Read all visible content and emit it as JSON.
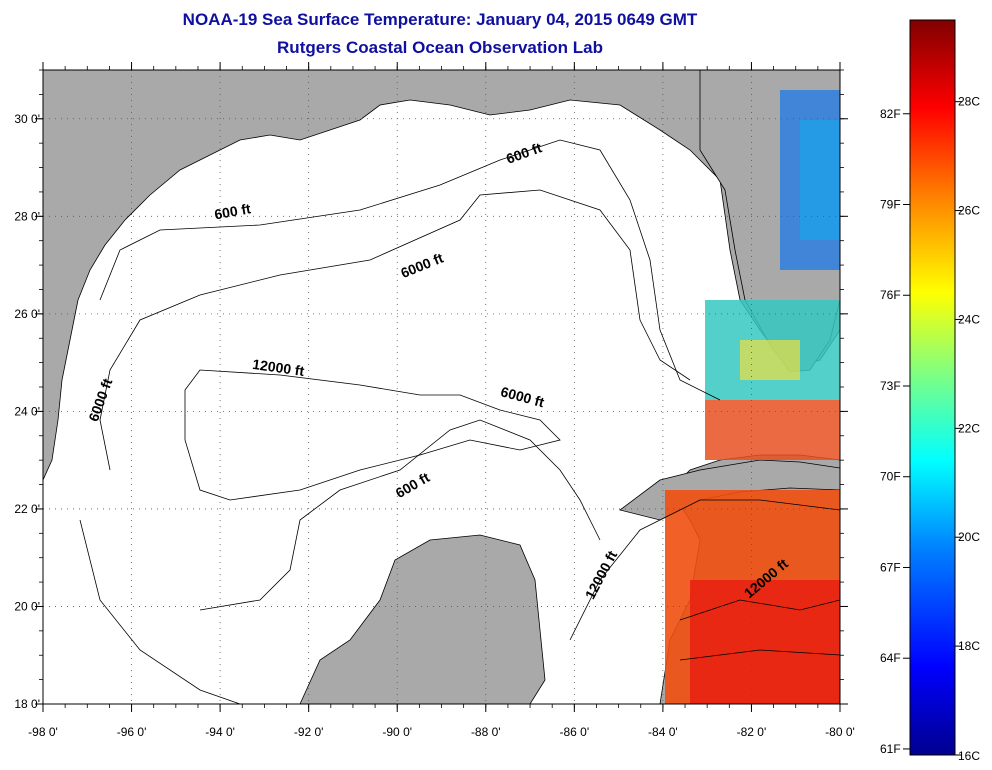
{
  "title_line1": "NOAA-19 Sea Surface Temperature:  January 04, 2015 0649 GMT",
  "title_line2": "Rutgers Coastal Ocean Observation Lab",
  "map": {
    "lon_range": [
      -98,
      -80
    ],
    "lat_range": [
      18,
      31
    ],
    "lon_ticks": [
      "-98 0'",
      "-96 0'",
      "-94 0'",
      "-92 0'",
      "-90 0'",
      "-88 0'",
      "-86 0'",
      "-84 0'",
      "-82 0'",
      "-80 0'"
    ],
    "lat_ticks": [
      "18 0'",
      "20 0'",
      "22 0'",
      "24 0'",
      "26 0'",
      "28 0'",
      "30 0'"
    ],
    "land_color": "#a9a9a9",
    "water_color": "#ffffff",
    "grid": "dotted"
  },
  "contour_labels": [
    {
      "text": "600 ft",
      "lon": -93.7,
      "lat": 28.0
    },
    {
      "text": "600 ft",
      "lon": -87.1,
      "lat": 29.2
    },
    {
      "text": "6000 ft",
      "lon": -89.4,
      "lat": 26.9
    },
    {
      "text": "12000 ft",
      "lon": -92.7,
      "lat": 24.8
    },
    {
      "text": "6000 ft",
      "lon": -96.6,
      "lat": 24.2
    },
    {
      "text": "6000 ft",
      "lon": -87.2,
      "lat": 24.2
    },
    {
      "text": "600 ft",
      "lon": -89.6,
      "lat": 22.4
    },
    {
      "text": "12000 ft",
      "lon": -85.3,
      "lat": 20.6
    },
    {
      "text": "12000 ft",
      "lon": -81.6,
      "lat": 20.5
    }
  ],
  "colorbar": {
    "celsius_labels": [
      "28C",
      "26C",
      "24C",
      "22C",
      "20C",
      "18C",
      "16C"
    ],
    "fahrenheit_labels": [
      "82F",
      "79F",
      "76F",
      "73F",
      "70F",
      "67F",
      "64F",
      "61F"
    ],
    "range_c": [
      16,
      29.5
    ],
    "colors": [
      "#00008f",
      "#0000ff",
      "#0080ff",
      "#00ffff",
      "#80ff80",
      "#ffff00",
      "#ff8000",
      "#ff0000",
      "#800000"
    ]
  }
}
